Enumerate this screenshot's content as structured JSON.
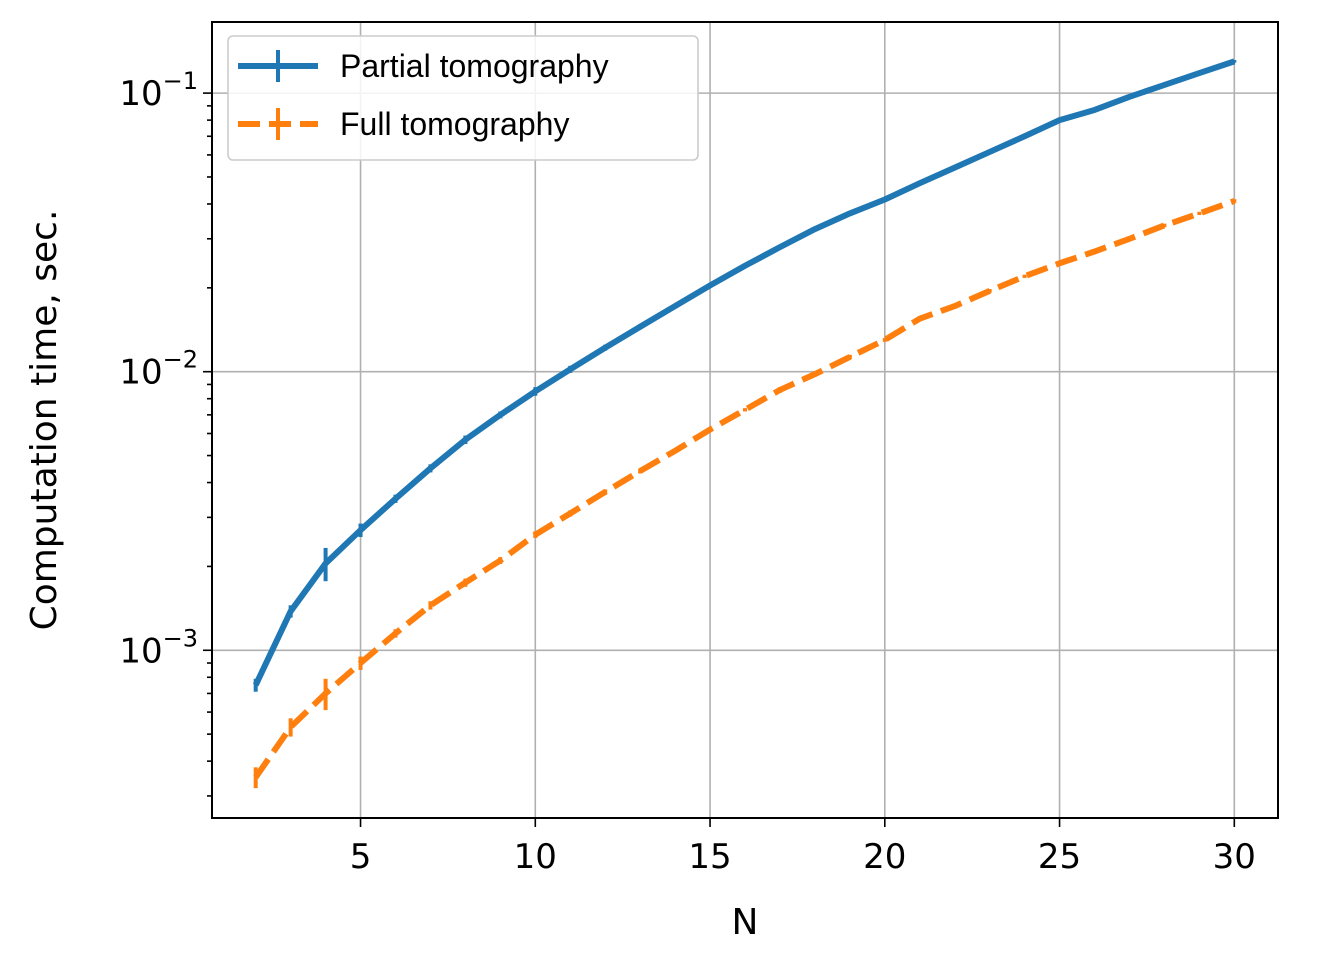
{
  "chart_data": {
    "type": "line",
    "title": "",
    "xlabel": "N",
    "ylabel": "Computation time, sec.",
    "yscale": "log",
    "xlim": [
      0.75,
      31.25
    ],
    "ylim": [
      0.00025,
      0.18
    ],
    "grid": true,
    "legend_position": "top-left",
    "x_ticks": [
      5,
      10,
      15,
      20,
      25,
      30
    ],
    "y_ticks": [
      {
        "value": 0.001,
        "base": "10",
        "exp": "−3"
      },
      {
        "value": 0.01,
        "base": "10",
        "exp": "−2"
      },
      {
        "value": 0.1,
        "base": "10",
        "exp": "−1"
      }
    ],
    "series": [
      {
        "name": "Partial tomography",
        "color": "#1f77b4",
        "style": "solid",
        "x": [
          2,
          3,
          4,
          5,
          6,
          7,
          8,
          9,
          10,
          11,
          12,
          13,
          14,
          15,
          16,
          17,
          18,
          19,
          20,
          21,
          22,
          23,
          24,
          25,
          26,
          27,
          28,
          29,
          30
        ],
        "y": [
          0.00075,
          0.00138,
          0.00205,
          0.0027,
          0.0035,
          0.0045,
          0.0057,
          0.007,
          0.0085,
          0.0102,
          0.0122,
          0.0145,
          0.0172,
          0.0204,
          0.024,
          0.028,
          0.0325,
          0.037,
          0.0415,
          0.0475,
          0.054,
          0.0615,
          0.07,
          0.08,
          0.087,
          0.097,
          0.107,
          0.118,
          0.13
        ],
        "err": [
          4e-05,
          7e-05,
          0.00028,
          0.00015,
          0.00012,
          0.00015,
          0.0002,
          0.0002,
          0.0003,
          0.0003,
          0.0003,
          0.0003,
          0.0003,
          0.0003,
          0.0004,
          0.0004,
          0.0005,
          0.0005,
          0.0006,
          0.0006,
          0.0007,
          0.0008,
          0.0009,
          0.001,
          0.001,
          0.001,
          0.0012,
          0.0013,
          0.0014
        ]
      },
      {
        "name": "Full tomography",
        "color": "#ff7f0e",
        "style": "dashed",
        "x": [
          2,
          3,
          4,
          5,
          6,
          7,
          8,
          9,
          10,
          11,
          12,
          13,
          14,
          15,
          16,
          17,
          18,
          19,
          20,
          21,
          22,
          23,
          24,
          25,
          26,
          27,
          28,
          29,
          30
        ],
        "y": [
          0.00035,
          0.00053,
          0.0007,
          0.0009,
          0.00115,
          0.00145,
          0.00175,
          0.0021,
          0.0026,
          0.0031,
          0.0037,
          0.0044,
          0.0052,
          0.0062,
          0.0073,
          0.0086,
          0.0098,
          0.0113,
          0.013,
          0.0155,
          0.0172,
          0.0195,
          0.022,
          0.0245,
          0.027,
          0.03,
          0.0335,
          0.037,
          0.041
        ],
        "err": [
          3e-05,
          4e-05,
          9e-05,
          5e-05,
          4e-05,
          5e-05,
          6e-05,
          6e-05,
          7e-05,
          8e-05,
          8e-05,
          9e-05,
          0.0001,
          0.0001,
          0.0001,
          0.0002,
          0.0002,
          0.0002,
          0.0002,
          0.0003,
          0.0003,
          0.0003,
          0.0003,
          0.0004,
          0.0004,
          0.0004,
          0.0005,
          0.0005,
          0.0006
        ]
      }
    ]
  }
}
